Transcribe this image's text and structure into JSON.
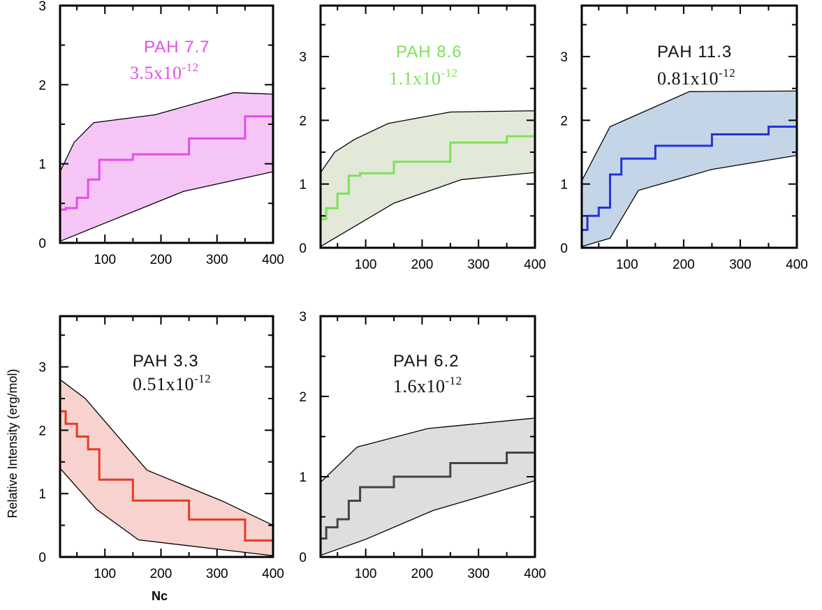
{
  "chart_data": [
    {
      "type": "line",
      "id": "pah77",
      "title": "PAH 7.7",
      "subtitle_base": "3.5x10",
      "subtitle_exp": "-12",
      "color": "#e64ce6",
      "fill": "#f5c6f5",
      "xlim": [
        20,
        400
      ],
      "ylim": [
        0,
        3
      ],
      "xticks": [
        "100",
        "200",
        "300",
        "400"
      ],
      "yticks": [
        "0",
        "1",
        "2",
        "3"
      ],
      "step": {
        "x": [
          20,
          30,
          50,
          70,
          90,
          150,
          250,
          350,
          400
        ],
        "y": [
          0.42,
          0.44,
          0.57,
          0.8,
          1.05,
          1.12,
          1.32,
          1.6,
          1.6
        ]
      },
      "upper": {
        "x": [
          20,
          45,
          80,
          190,
          330,
          400
        ],
        "y": [
          0.9,
          1.27,
          1.52,
          1.62,
          1.9,
          1.88
        ]
      },
      "lower": {
        "x": [
          20,
          100,
          170,
          240,
          400
        ],
        "y": [
          0.02,
          0.25,
          0.45,
          0.65,
          0.9
        ]
      }
    },
    {
      "type": "line",
      "id": "pah86",
      "title": "PAH 8.6",
      "subtitle_base": "1.1x10",
      "subtitle_exp": "-12",
      "color": "#7fe05a",
      "fill": "#e2e9d8",
      "xlim": [
        20,
        400
      ],
      "ylim": [
        0,
        3.8
      ],
      "xticks": [
        "100",
        "200",
        "300",
        "400"
      ],
      "yticks": [
        "0",
        "1",
        "2",
        "3"
      ],
      "step": {
        "x": [
          20,
          30,
          50,
          70,
          90,
          150,
          250,
          350,
          400
        ],
        "y": [
          0.45,
          0.62,
          0.85,
          1.13,
          1.17,
          1.35,
          1.65,
          1.75,
          1.75
        ]
      },
      "upper": {
        "x": [
          20,
          45,
          80,
          140,
          250,
          400
        ],
        "y": [
          1.18,
          1.5,
          1.7,
          1.95,
          2.13,
          2.15
        ]
      },
      "lower": {
        "x": [
          20,
          150,
          270,
          400
        ],
        "y": [
          0.02,
          0.7,
          1.07,
          1.18
        ]
      }
    },
    {
      "type": "line",
      "id": "pah113",
      "title": "PAH 11.3",
      "subtitle_base": "0.81x10",
      "subtitle_exp": "-12",
      "color": "#2233dd",
      "fill": "#c5d5e8",
      "xlim": [
        20,
        400
      ],
      "ylim": [
        0,
        3.8
      ],
      "xticks": [
        "100",
        "200",
        "300",
        "400"
      ],
      "yticks": [
        "0",
        "1",
        "2",
        "3"
      ],
      "step": {
        "x": [
          20,
          30,
          50,
          70,
          90,
          150,
          250,
          350,
          400
        ],
        "y": [
          0.28,
          0.5,
          0.63,
          1.15,
          1.4,
          1.6,
          1.78,
          1.9,
          1.9
        ]
      },
      "upper": {
        "x": [
          20,
          70,
          210,
          400
        ],
        "y": [
          1.05,
          1.9,
          2.45,
          2.46
        ]
      },
      "lower": {
        "x": [
          20,
          70,
          120,
          250,
          400
        ],
        "y": [
          0.02,
          0.15,
          0.9,
          1.23,
          1.45
        ]
      }
    },
    {
      "type": "line",
      "id": "pah33",
      "title": "PAH 3.3",
      "subtitle_base": "0.51x10",
      "subtitle_exp": "-12",
      "color": "#e63a26",
      "fill": "#f8d2ce",
      "xlim": [
        20,
        400
      ],
      "ylim": [
        0,
        3.8
      ],
      "xticks": [
        "100",
        "200",
        "300",
        "400"
      ],
      "yticks": [
        "0",
        "1",
        "2",
        "3"
      ],
      "ylabel": "Relative Intensity (erg/mol)",
      "xlabel": "Nc",
      "step": {
        "x": [
          20,
          30,
          50,
          70,
          90,
          150,
          250,
          350,
          400
        ],
        "y": [
          2.3,
          2.1,
          1.9,
          1.7,
          1.22,
          0.89,
          0.59,
          0.26,
          0.26
        ]
      },
      "upper": {
        "x": [
          20,
          65,
          175,
          310,
          400
        ],
        "y": [
          2.8,
          2.5,
          1.37,
          0.88,
          0.5
        ]
      },
      "lower": {
        "x": [
          20,
          85,
          160,
          400
        ],
        "y": [
          1.4,
          0.75,
          0.27,
          0.02
        ]
      }
    },
    {
      "type": "line",
      "id": "pah62",
      "title": "PAH 6.2",
      "subtitle_base": "1.6x10",
      "subtitle_exp": "-12",
      "color": "#444444",
      "fill": "#dedede",
      "xlim": [
        20,
        400
      ],
      "ylim": [
        0,
        3
      ],
      "xticks": [
        "100",
        "200",
        "300",
        "400"
      ],
      "yticks": [
        "0",
        "1",
        "2",
        "3"
      ],
      "step": {
        "x": [
          20,
          30,
          50,
          70,
          90,
          150,
          250,
          350,
          400
        ],
        "y": [
          0.23,
          0.37,
          0.47,
          0.7,
          0.87,
          1.0,
          1.17,
          1.3,
          1.3
        ]
      },
      "upper": {
        "x": [
          20,
          85,
          210,
          400
        ],
        "y": [
          0.93,
          1.37,
          1.6,
          1.73
        ]
      },
      "lower": {
        "x": [
          20,
          100,
          220,
          400
        ],
        "y": [
          0.02,
          0.22,
          0.58,
          0.95
        ]
      }
    }
  ]
}
